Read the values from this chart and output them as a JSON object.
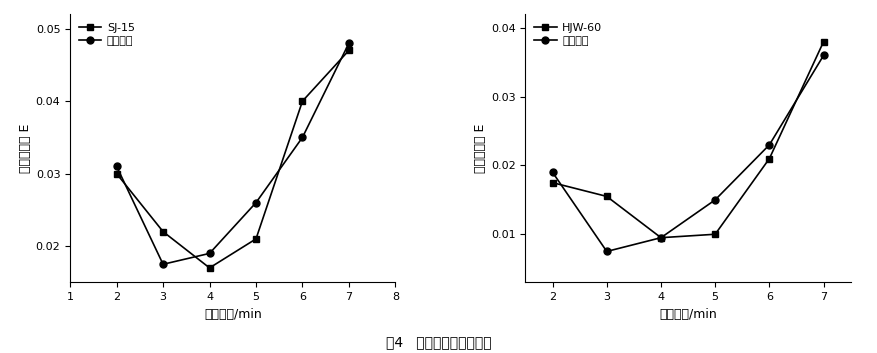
{
  "left": {
    "x": [
      2,
      3,
      4,
      5,
      6,
      7
    ],
    "y_data": [
      0.03,
      0.022,
      0.017,
      0.021,
      0.04,
      0.047
    ],
    "y_fit": [
      0.031,
      0.0175,
      0.019,
      0.026,
      0.035,
      0.048
    ],
    "xlabel": "搞拌时间/min",
    "ylabel": "均匀度指数 E",
    "xlim": [
      1,
      8
    ],
    "ylim": [
      0.015,
      0.052
    ],
    "yticks": [
      0.02,
      0.03,
      0.04,
      0.05
    ],
    "xticks": [
      1,
      2,
      3,
      4,
      5,
      6,
      7,
      8
    ],
    "legend_data": "SJ-15",
    "legend_fit": "拟合结果"
  },
  "right": {
    "x": [
      2,
      3,
      4,
      5,
      6,
      7
    ],
    "y_data": [
      0.0175,
      0.0155,
      0.0095,
      0.01,
      0.021,
      0.038
    ],
    "y_fit": [
      0.019,
      0.0075,
      0.0095,
      0.015,
      0.023,
      0.036
    ],
    "xlabel": "搞拌时间/min",
    "ylabel": "均匀度指数 E",
    "xlim": [
      1.5,
      7.5
    ],
    "ylim": [
      0.003,
      0.042
    ],
    "yticks": [
      0.01,
      0.02,
      0.03,
      0.04
    ],
    "xticks": [
      2,
      3,
      4,
      5,
      6,
      7
    ],
    "legend_data": "HJW-60",
    "legend_fit": "拟合结果"
  },
  "caption": "图4   均匀度指数拟合结果",
  "figure_bg": "#ffffff",
  "line_color": "#000000",
  "marker_data": "s",
  "marker_fit": "o",
  "markersize": 5,
  "linewidth": 1.2,
  "fontsize_label": 9,
  "fontsize_tick": 8,
  "fontsize_legend": 8,
  "fontsize_caption": 10
}
